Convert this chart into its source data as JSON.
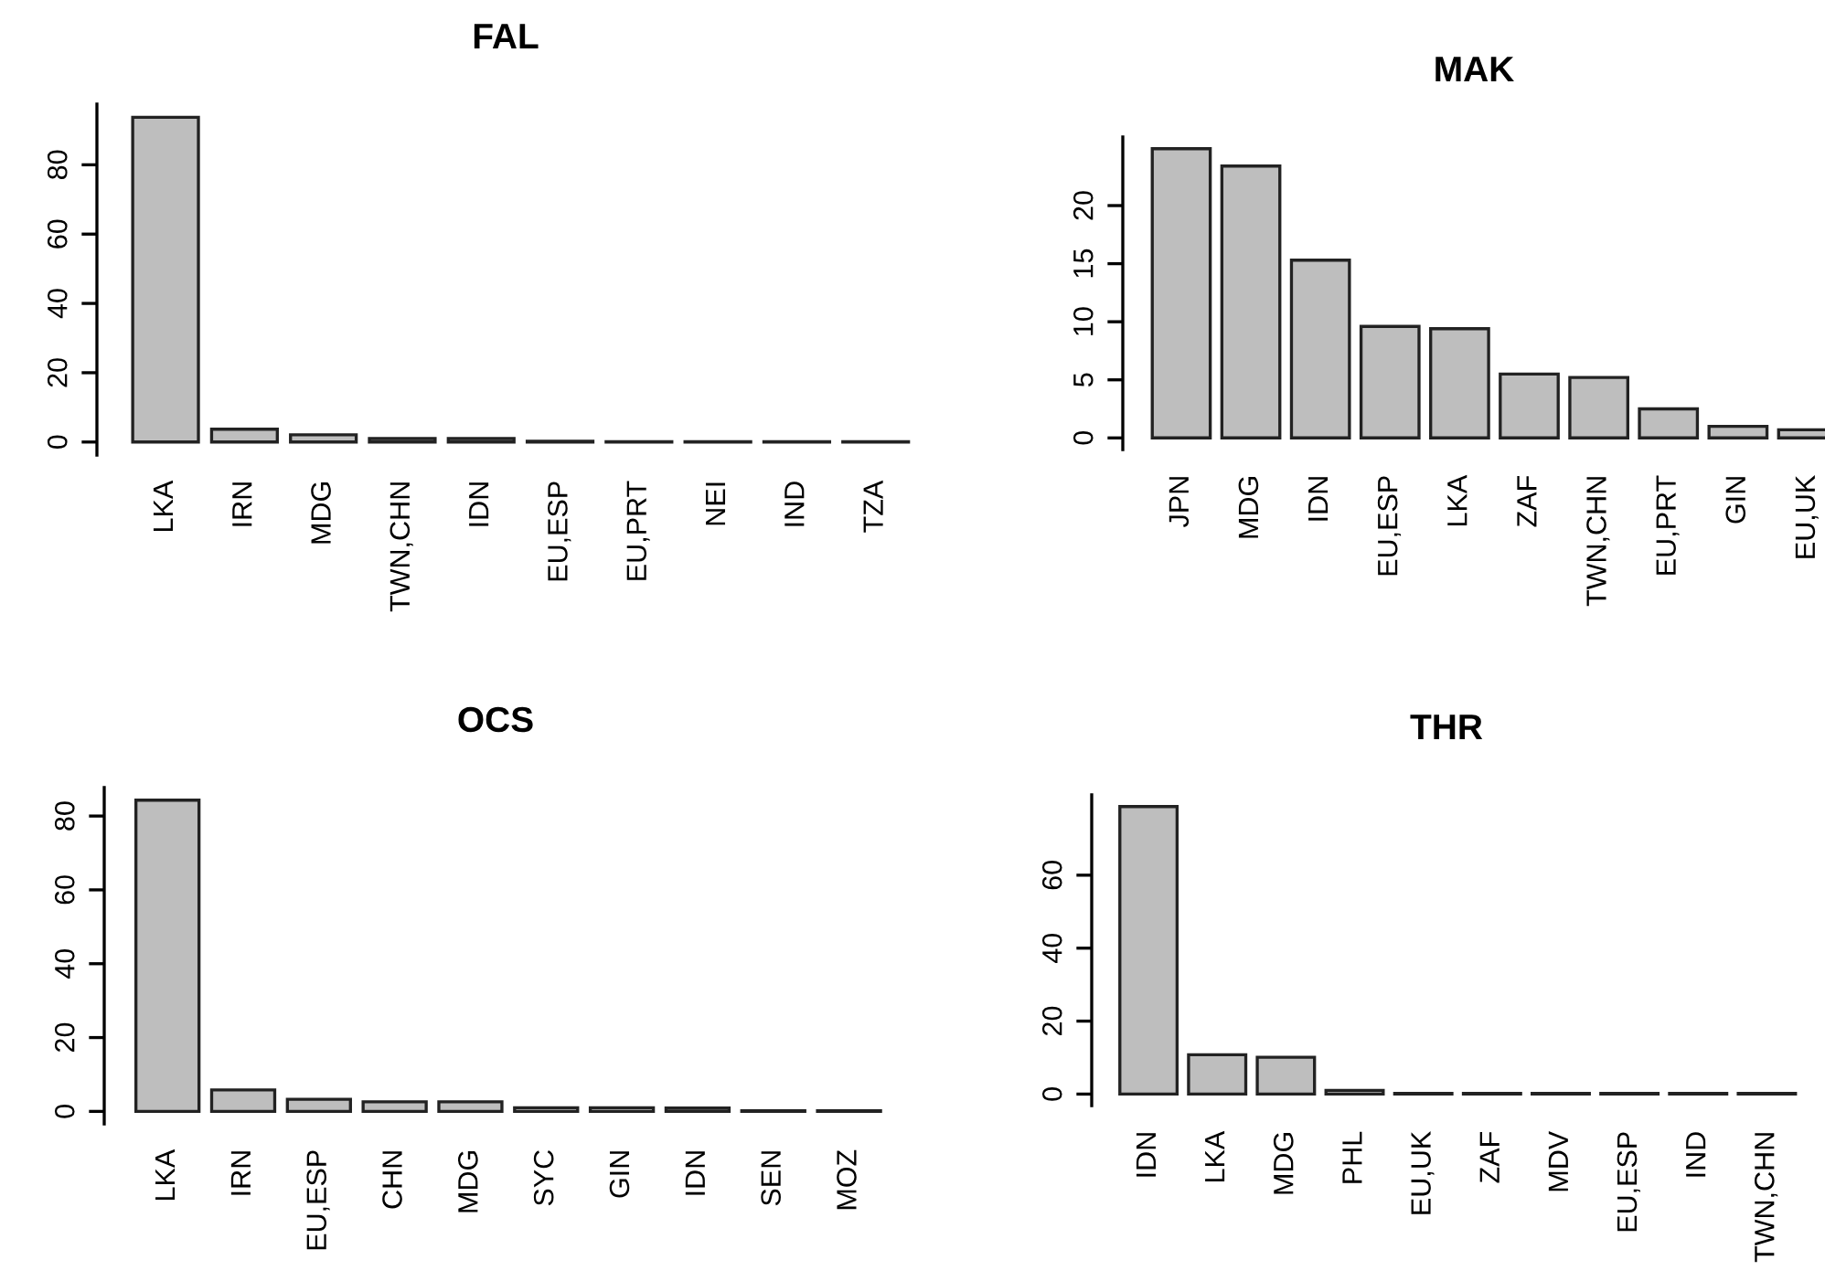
{
  "chart_data": [
    {
      "type": "bar",
      "title": "FAL",
      "categories": [
        "LKA",
        "IRN",
        "MDG",
        "TWN,CHN",
        "IDN",
        "EU,ESP",
        "EU,PRT",
        "NEI",
        "IND",
        "TZA"
      ],
      "values": [
        93.7,
        3.7,
        2.1,
        1.0,
        1.0,
        0.2,
        0.1,
        0.1,
        0.1,
        0.1
      ],
      "color": "#bebebe",
      "ylim": [
        -3.75,
        97.5
      ],
      "yticks": [
        0,
        20,
        40,
        60,
        80
      ],
      "grid": false,
      "legend": false
    },
    {
      "type": "bar",
      "title": "MAK",
      "categories": [
        "JPN",
        "MDG",
        "IDN",
        "EU,ESP",
        "LKA",
        "ZAF",
        "TWN,CHN",
        "EU,PRT",
        "GIN",
        "EU,UK"
      ],
      "values": [
        24.9,
        23.4,
        15.3,
        9.6,
        9.4,
        5.5,
        5.2,
        2.5,
        1.0,
        0.7
      ],
      "color": "#bebebe",
      "ylim": [
        -1.0,
        25.9
      ],
      "yticks": [
        0,
        5,
        10,
        15,
        20
      ],
      "grid": false,
      "legend": false
    },
    {
      "type": "bar",
      "title": "OCS",
      "categories": [
        "LKA",
        "IRN",
        "EU,ESP",
        "CHN",
        "MDG",
        "SYC",
        "GIN",
        "IDN",
        "SEN",
        "MOZ"
      ],
      "values": [
        84.3,
        5.8,
        3.3,
        2.6,
        2.6,
        1.0,
        1.0,
        0.9,
        0.2,
        0.2
      ],
      "color": "#bebebe",
      "ylim": [
        -3.37,
        87.7
      ],
      "yticks": [
        0,
        20,
        40,
        60,
        80
      ],
      "grid": false,
      "legend": false
    },
    {
      "type": "bar",
      "title": "THR",
      "categories": [
        "IDN",
        "LKA",
        "MDG",
        "PHL",
        "EU,UK",
        "ZAF",
        "MDV",
        "EU,ESP",
        "IND",
        "TWN,CHN"
      ],
      "values": [
        78.8,
        10.8,
        10.1,
        1.0,
        0.2,
        0.2,
        0.2,
        0.2,
        0.2,
        0.2
      ],
      "color": "#bebebe",
      "ylim": [
        -3.15,
        82
      ],
      "yticks": [
        0,
        20,
        40,
        60
      ],
      "grid": false,
      "legend": false
    }
  ]
}
